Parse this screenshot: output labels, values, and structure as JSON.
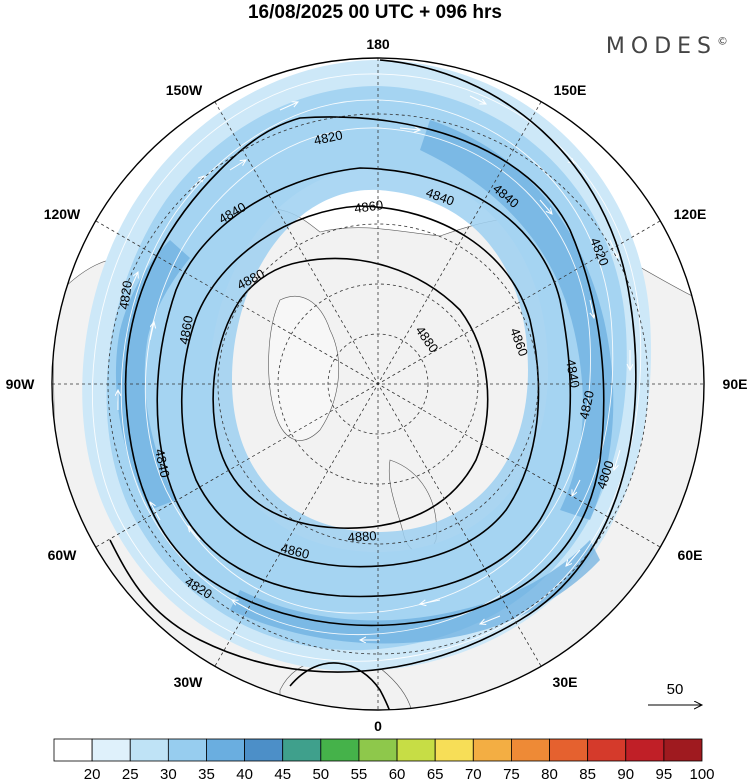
{
  "title": "16/08/2025  00 UTC  + 096 hrs",
  "brand": "MODES",
  "brand_mark": "©",
  "longitude_labels": [
    "180",
    "150E",
    "120E",
    "90E",
    "60E",
    "30E",
    "0",
    "30W",
    "60W",
    "90W",
    "120W",
    "150W"
  ],
  "contour_labels": [
    "4820",
    "4840",
    "4860",
    "4880",
    "4880",
    "4860",
    "4840",
    "4820",
    "4800",
    "4820",
    "4840",
    "4860",
    "4880",
    "4820",
    "4840",
    "4860",
    "4840",
    "4820"
  ],
  "reference_vector": "50",
  "colorbar": {
    "ticks": [
      "20",
      "25",
      "30",
      "35",
      "40",
      "45",
      "50",
      "55",
      "60",
      "65",
      "70",
      "75",
      "80",
      "85",
      "90",
      "95",
      "100"
    ],
    "colors": [
      "#ffffff",
      "#dff1fb",
      "#bfe3f6",
      "#97cdef",
      "#6aaee0",
      "#4c8fc8",
      "#3fa08c",
      "#45b24a",
      "#8ec84b",
      "#c7dd45",
      "#f7de57",
      "#f3ae43",
      "#ee8a36",
      "#e5612f",
      "#d53a2b",
      "#c01f27",
      "#9f1a1f"
    ]
  },
  "colors": {
    "land_fill": "#f2f2f2",
    "jet_light": "#cde8f8",
    "jet_mid": "#9dd0f1",
    "jet_strong": "#6aaee0"
  }
}
